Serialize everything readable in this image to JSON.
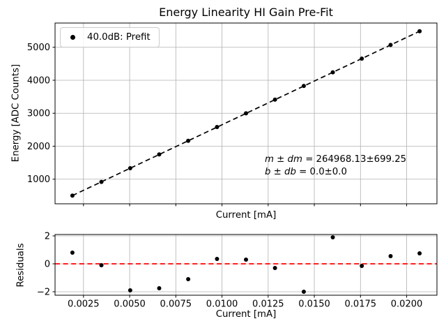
{
  "figure": {
    "title": "Energy Linearity HI Gain Pre-Fit"
  },
  "colors": {
    "data": "#000000",
    "fit_line": "#000000",
    "residual_zero_line": "#ff0000",
    "grid": "#b0b0b0",
    "spine": "#000000",
    "legend_border": "#cccccc",
    "background": "#ffffff"
  },
  "chart_data": [
    {
      "id": "energy-linearity",
      "type": "scatter",
      "title": "Energy Linearity HI Gain Pre-Fit",
      "xlabel": "Current [mA]",
      "ylabel": "Energy [ADC Counts]",
      "xlim": [
        0.00096,
        0.02164
      ],
      "ylim": [
        254,
        5735
      ],
      "grid": true,
      "legend_position": "upper-left",
      "xticks": [
        0.0025,
        0.005,
        0.0075,
        0.01,
        0.0125,
        0.015,
        0.0175,
        0.02
      ],
      "xticklabels": [],
      "yticks": [
        1000,
        2000,
        3000,
        4000,
        5000
      ],
      "yticklabels": [
        "1000",
        "2000",
        "3000",
        "4000",
        "5000"
      ],
      "legend": {
        "entries": [
          {
            "label": "40.0dB: Prefit",
            "marker": "black-dot"
          }
        ]
      },
      "series": [
        {
          "name": "prefit-dashed-line",
          "type": "line",
          "style": "dashed",
          "color": "#000000",
          "x": [
            0.0019,
            0.0207
          ],
          "y": [
            503,
            5486
          ]
        },
        {
          "name": "40.0dB: Prefit",
          "type": "scatter",
          "marker": "dot",
          "color": "#000000",
          "x": [
            0.0019,
            0.00347,
            0.00503,
            0.0066,
            0.00817,
            0.00973,
            0.0113,
            0.01287,
            0.01443,
            0.016,
            0.01757,
            0.01913,
            0.0207
          ],
          "y": [
            503,
            919,
            1334,
            1750,
            2165,
            2581,
            2996,
            3412,
            3827,
            4240,
            4655,
            5070,
            5486
          ]
        }
      ],
      "annotation": {
        "line1_math": "m ± dm",
        "line1_rest": "= 264968.13±699.25",
        "line2_math": "b ± db",
        "line2_rest": "= 0.0±0.0",
        "slope": 264968.13,
        "slope_error": 699.25,
        "intercept": 0.0,
        "intercept_error": 0.0
      }
    },
    {
      "id": "residuals",
      "type": "scatter",
      "title": "",
      "xlabel": "Current [mA]",
      "ylabel": "Residuals",
      "xlim": [
        0.00096,
        0.02164
      ],
      "ylim": [
        -2.25,
        2.1
      ],
      "grid": true,
      "xticks": [
        0.0025,
        0.005,
        0.0075,
        0.01,
        0.0125,
        0.015,
        0.0175,
        0.02
      ],
      "xticklabels": [
        "0.0025",
        "0.0050",
        "0.0075",
        "0.0100",
        "0.0125",
        "0.0150",
        "0.0175",
        "0.0200"
      ],
      "yticks": [
        -2,
        0,
        2
      ],
      "yticklabels": [
        "−2",
        "0",
        "2"
      ],
      "refline": {
        "y": 0,
        "color": "#ff0000",
        "style": "dashed"
      },
      "series": [
        {
          "name": "residual-points",
          "type": "scatter",
          "marker": "dot",
          "color": "#000000",
          "x": [
            0.0019,
            0.00347,
            0.00503,
            0.0066,
            0.00817,
            0.00973,
            0.0113,
            0.01287,
            0.01443,
            0.016,
            0.01757,
            0.01913,
            0.0207
          ],
          "y": [
            0.8,
            -0.1,
            -1.9,
            -1.75,
            -1.1,
            0.35,
            0.3,
            -0.3,
            -2.0,
            1.9,
            -0.15,
            0.55,
            0.75
          ]
        }
      ]
    }
  ]
}
